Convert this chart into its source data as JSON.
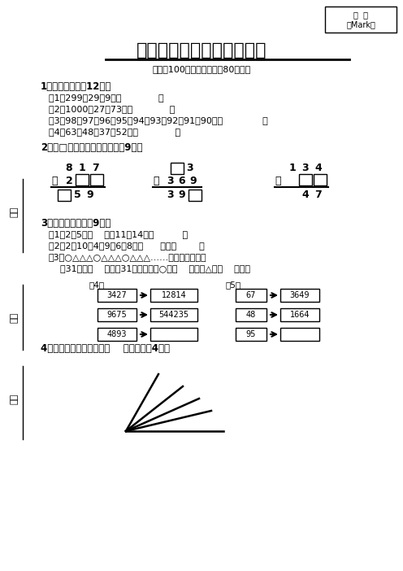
{
  "bg_color": "#ffffff",
  "title": "二年级下学期数学竞赛试卷",
  "subtitle": "（满分100分，考试时间：80分钟）",
  "score_box_label": "成  绩\n（Mark）",
  "left_labels": [
    "姓名",
    "班级",
    "学校"
  ],
  "section1_title": "1、巧思妙算。【12分】",
  "section1_items": [
    "（1）299＋29＋9＝（             ）",
    "（2）1000－27－73＝（             ）",
    "（3）98－97＋96－95＋94－93＋92－91＋90＝（              ）",
    "（4）63＋48＋37＋52＝（             ）"
  ],
  "section2_title": "2、在□里填上合适的数字。【9分】",
  "section3_title": "3、按规律填数。【9分】",
  "section3_items": [
    "（1）2，5，（    ），11，14，（          ）",
    "（2）2，10，4，9，6，8，（      ），（        ）",
    "（3）○△△△○△△△○△△△……照这样排下去，",
    "    第31个是（    ），这31个图形中，○有（    ）个，△有（    ）个。"
  ],
  "section4_label": "（4）",
  "section4_rows": [
    [
      "3427",
      "12814"
    ],
    [
      "9675",
      "544235"
    ],
    [
      "4893",
      ""
    ]
  ],
  "section5_label": "（5）",
  "section5_rows": [
    [
      "67",
      "3649"
    ],
    [
      "48",
      "1664"
    ],
    [
      "95",
      ""
    ]
  ],
  "section4_title": "4、数一数，下图中共有（    ）个角。【4分】"
}
